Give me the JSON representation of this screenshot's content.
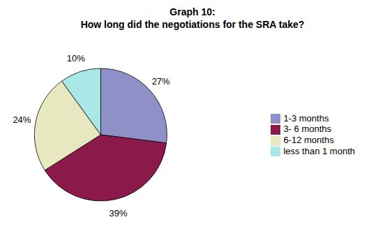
{
  "chart_data": {
    "type": "pie",
    "title": "Graph 10:\nHow long did the negotiations for the SRA take?",
    "categories": [
      "1-3 months",
      "3- 6 months",
      "6-12 months",
      "less than 1 month"
    ],
    "values": [
      27,
      39,
      24,
      10
    ],
    "value_labels": [
      "27%",
      "39%",
      "24%",
      "10%"
    ],
    "colors": [
      "#9090c8",
      "#8b1a4a",
      "#e8e8c0",
      "#aae8e8"
    ],
    "data_labels": true,
    "legend": "right"
  }
}
